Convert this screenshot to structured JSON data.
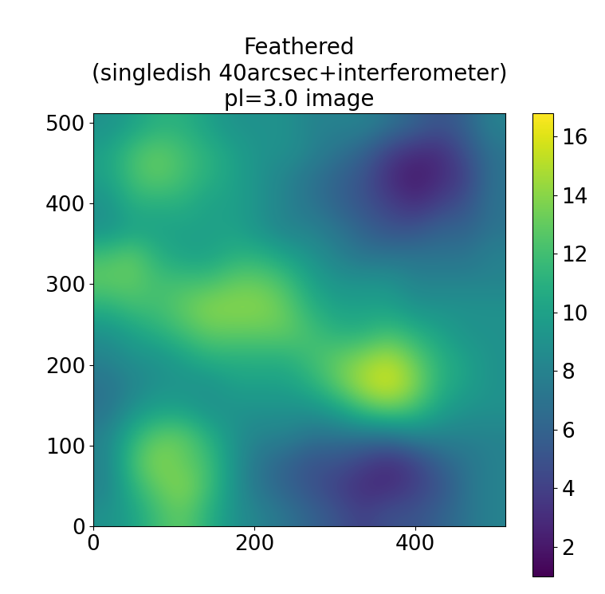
{
  "chart_data": {
    "type": "heatmap",
    "title": "Feathered\n(singledish 40arcsec+interferometer)\npl=3.0 image",
    "color": "viridis",
    "xlim": [
      0,
      512
    ],
    "ylim": [
      0,
      512
    ],
    "xticks": [
      0,
      200,
      400
    ],
    "yticks": [
      0,
      100,
      200,
      300,
      400,
      500
    ],
    "cells": [
      [
        9,
        10,
        12,
        13,
        11,
        9,
        8,
        7,
        6,
        5,
        4,
        5,
        5,
        6,
        7,
        8
      ],
      [
        8,
        11,
        13,
        14,
        12,
        9,
        7,
        6,
        5,
        4,
        3,
        3,
        4,
        5,
        7,
        8
      ],
      [
        8,
        12,
        14,
        13,
        12,
        9,
        7,
        6,
        5,
        5,
        4,
        3,
        4,
        6,
        7,
        8
      ],
      [
        8,
        11,
        13,
        13,
        11,
        9,
        8,
        8,
        7,
        7,
        7,
        7,
        8,
        8,
        8,
        8
      ],
      [
        7,
        9,
        10,
        10,
        9,
        9,
        9,
        9,
        9,
        10,
        12,
        13,
        12,
        10,
        9,
        9
      ],
      [
        7,
        8,
        9,
        9,
        9,
        10,
        10,
        10,
        11,
        13,
        15,
        16,
        14,
        11,
        10,
        9
      ],
      [
        8,
        9,
        9,
        10,
        11,
        11,
        11,
        11,
        12,
        13,
        14,
        15,
        13,
        11,
        10,
        9
      ],
      [
        9,
        10,
        11,
        12,
        13,
        13,
        13,
        13,
        12,
        11,
        11,
        12,
        11,
        10,
        9,
        9
      ],
      [
        11,
        12,
        12,
        13,
        14,
        14,
        14,
        13,
        11,
        10,
        10,
        10,
        9,
        9,
        9,
        9
      ],
      [
        13,
        13,
        12,
        12,
        12,
        13,
        13,
        12,
        10,
        9,
        9,
        9,
        8,
        8,
        8,
        8
      ],
      [
        12,
        13,
        11,
        10,
        10,
        11,
        11,
        10,
        9,
        8,
        7,
        7,
        7,
        7,
        7,
        8
      ],
      [
        9,
        10,
        10,
        10,
        10,
        10,
        9,
        8,
        8,
        7,
        6,
        5,
        5,
        6,
        6,
        7
      ],
      [
        9,
        11,
        11,
        11,
        10,
        10,
        9,
        8,
        7,
        6,
        5,
        4,
        3,
        4,
        5,
        7
      ],
      [
        10,
        12,
        13,
        12,
        11,
        10,
        9,
        8,
        7,
        6,
        5,
        3,
        2,
        3,
        4,
        7
      ],
      [
        10,
        12,
        13,
        12,
        11,
        10,
        9,
        9,
        8,
        7,
        6,
        4,
        3,
        3,
        5,
        7
      ],
      [
        9,
        10,
        11,
        11,
        10,
        9,
        9,
        9,
        8,
        8,
        8,
        7,
        6,
        5,
        6,
        8
      ]
    ],
    "colorbar_range": [
      1,
      16.8
    ],
    "colorbar_ticks": [
      2,
      4,
      6,
      8,
      10,
      12,
      14,
      16
    ]
  }
}
